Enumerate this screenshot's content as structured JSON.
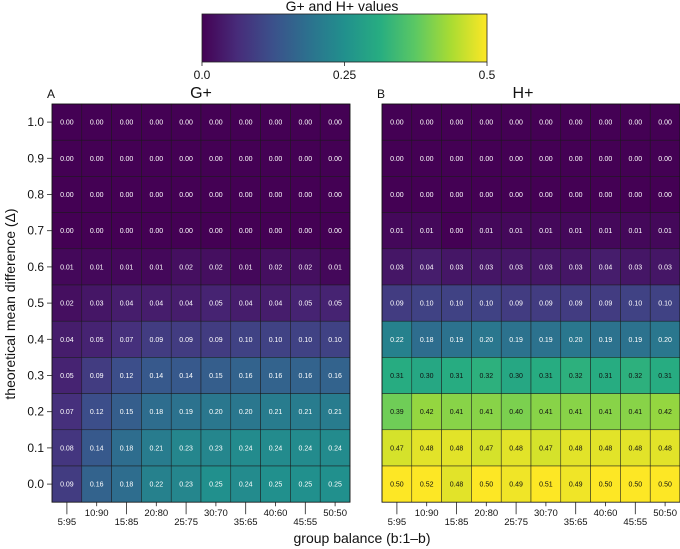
{
  "colorbar": {
    "title": "G+ and H+ values",
    "tick_labels": [
      "0.0",
      "0.25",
      "0.5"
    ],
    "tick_values": [
      0,
      0.25,
      0.5
    ],
    "range": [
      0,
      0.5
    ],
    "colormap": "viridis"
  },
  "shared": {
    "ylabel": "theoretical mean difference (Δ)",
    "xlabel": "group balance (b:1–b)",
    "x_ticks_lower": [
      "5:95",
      "15:85",
      "25:75",
      "35:65",
      "45:55"
    ],
    "x_ticks_upper": [
      "10:90",
      "20:80",
      "30:70",
      "40:60",
      "50:50"
    ]
  },
  "chart_data": [
    {
      "type": "heatmap",
      "panel_label": "A",
      "title": "G+",
      "x_categories": [
        "5:95",
        "10:90",
        "15:85",
        "20:80",
        "25:75",
        "30:70",
        "35:65",
        "40:60",
        "45:55",
        "50:50"
      ],
      "y_categories": [
        "1.0",
        "0.9",
        "0.8",
        "0.7",
        "0.6",
        "0.5",
        "0.4",
        "0.3",
        "0.2",
        "0.1",
        "0.0"
      ],
      "ylabel": "theoretical mean difference (Δ)",
      "xlabel": "group balance (b:1–b)",
      "values": [
        [
          "0.00",
          "0.00",
          "0.00",
          "0.00",
          "0.00",
          "0.00",
          "0.00",
          "0.00",
          "0.00",
          "0.00"
        ],
        [
          "0.00",
          "0.00",
          "0.00",
          "0.00",
          "0.00",
          "0.00",
          "0.00",
          "0.00",
          "0.00",
          "0.00"
        ],
        [
          "0.00",
          "0.00",
          "0.00",
          "0.00",
          "0.00",
          "0.00",
          "0.00",
          "0.00",
          "0.00",
          "0.00"
        ],
        [
          "0.00",
          "0.00",
          "0.00",
          "0.00",
          "0.00",
          "0.00",
          "0.00",
          "0.00",
          "0.00",
          "0.00"
        ],
        [
          "0.01",
          "0.01",
          "0.01",
          "0.01",
          "0.02",
          "0.02",
          "0.01",
          "0.02",
          "0.02",
          "0.01"
        ],
        [
          "0.02",
          "0.03",
          "0.04",
          "0.04",
          "0.04",
          "0.05",
          "0.04",
          "0.04",
          "0.05",
          "0.05"
        ],
        [
          "0.04",
          "0.05",
          "0.07",
          "0.09",
          "0.09",
          "0.09",
          "0.10",
          "0.10",
          "0.10",
          "0.10"
        ],
        [
          "0.05",
          "0.09",
          "0.12",
          "0.14",
          "0.14",
          "0.15",
          "0.16",
          "0.16",
          "0.16",
          "0.16"
        ],
        [
          "0.07",
          "0.12",
          "0.15",
          "0.18",
          "0.19",
          "0.20",
          "0.20",
          "0.21",
          "0.21",
          "0.21"
        ],
        [
          "0.08",
          "0.14",
          "0.18",
          "0.21",
          "0.23",
          "0.23",
          "0.24",
          "0.24",
          "0.24",
          "0.24"
        ],
        [
          "0.09",
          "0.16",
          "0.18",
          "0.22",
          "0.23",
          "0.25",
          "0.24",
          "0.25",
          "0.25",
          "0.25"
        ]
      ]
    },
    {
      "type": "heatmap",
      "panel_label": "B",
      "title": "H+",
      "x_categories": [
        "5:95",
        "10:90",
        "15:85",
        "20:80",
        "25:75",
        "30:70",
        "35:65",
        "40:60",
        "45:55",
        "50:50"
      ],
      "y_categories": [
        "1.0",
        "0.9",
        "0.8",
        "0.7",
        "0.6",
        "0.5",
        "0.4",
        "0.3",
        "0.2",
        "0.1",
        "0.0"
      ],
      "ylabel": "theoretical mean difference (Δ)",
      "xlabel": "group balance (b:1–b)",
      "values": [
        [
          "0.00",
          "0.00",
          "0.00",
          "0.00",
          "0.00",
          "0.00",
          "0.00",
          "0.00",
          "0.00",
          "0.00"
        ],
        [
          "0.00",
          "0.00",
          "0.00",
          "0.00",
          "0.00",
          "0.00",
          "0.00",
          "0.00",
          "0.00",
          "0.00"
        ],
        [
          "0.00",
          "0.00",
          "0.00",
          "0.00",
          "0.00",
          "0.00",
          "0.00",
          "0.00",
          "0.00",
          "0.00"
        ],
        [
          "0.01",
          "0.01",
          "0.00",
          "0.01",
          "0.01",
          "0.01",
          "0.01",
          "0.01",
          "0.01",
          "0.01"
        ],
        [
          "0.03",
          "0.04",
          "0.03",
          "0.03",
          "0.03",
          "0.03",
          "0.03",
          "0.04",
          "0.03",
          "0.03"
        ],
        [
          "0.09",
          "0.10",
          "0.10",
          "0.10",
          "0.09",
          "0.09",
          "0.09",
          "0.09",
          "0.10",
          "0.10"
        ],
        [
          "0.22",
          "0.18",
          "0.19",
          "0.20",
          "0.19",
          "0.19",
          "0.20",
          "0.19",
          "0.19",
          "0.20"
        ],
        [
          "0.31",
          "0.30",
          "0.31",
          "0.32",
          "0.30",
          "0.31",
          "0.32",
          "0.31",
          "0.32",
          "0.31"
        ],
        [
          "0.39",
          "0.42",
          "0.41",
          "0.41",
          "0.40",
          "0.41",
          "0.41",
          "0.41",
          "0.41",
          "0.42"
        ],
        [
          "0.47",
          "0.48",
          "0.48",
          "0.47",
          "0.48",
          "0.47",
          "0.48",
          "0.48",
          "0.48",
          "0.48"
        ],
        [
          "0.50",
          "0.52",
          "0.48",
          "0.50",
          "0.49",
          "0.51",
          "0.49",
          "0.50",
          "0.50",
          "0.50"
        ]
      ]
    }
  ]
}
